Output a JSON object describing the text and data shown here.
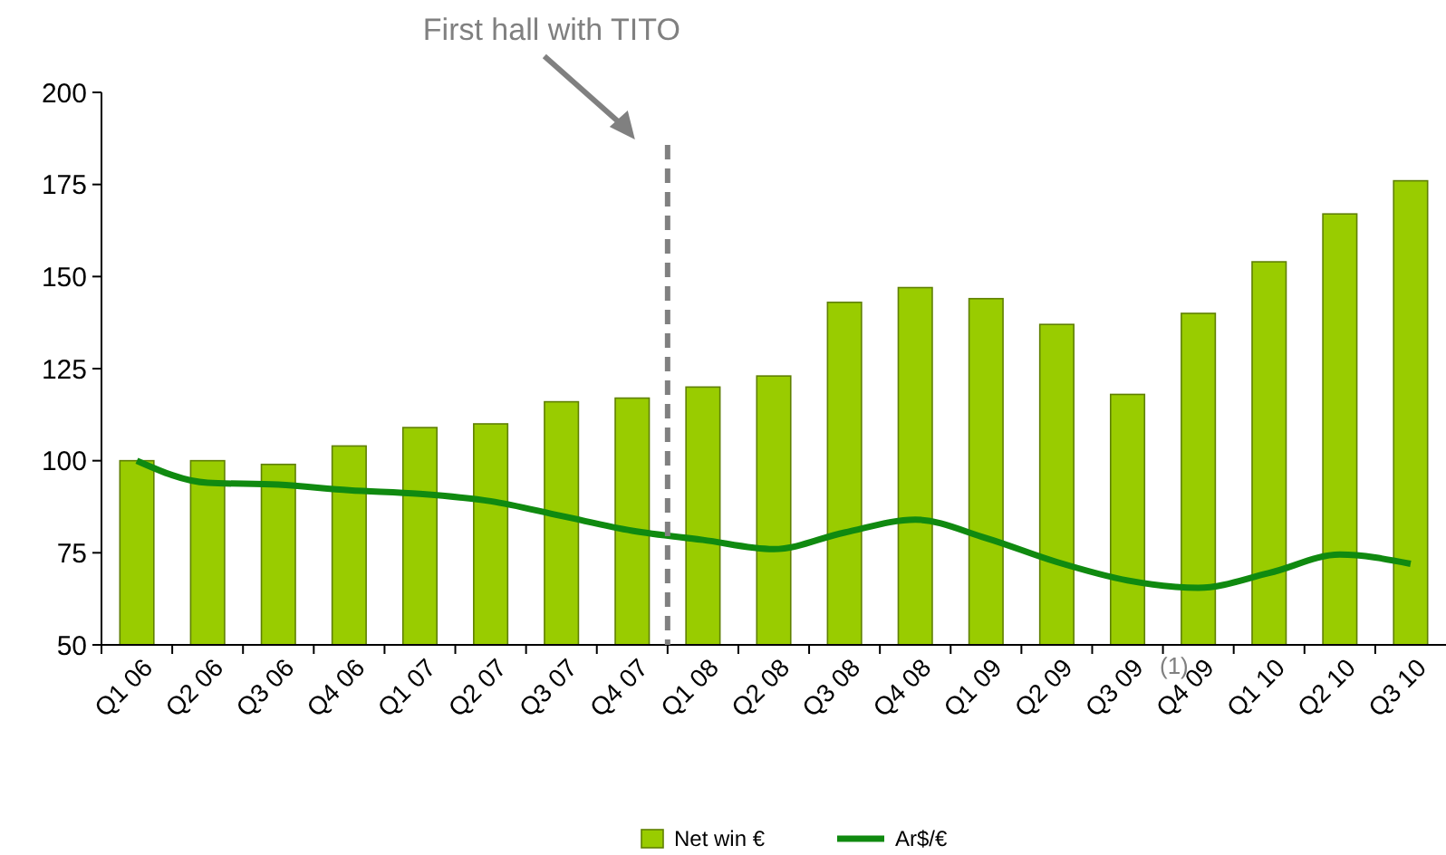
{
  "chart_data": {
    "type": "bar",
    "categories": [
      "Q1 06",
      "Q2 06",
      "Q3 06",
      "Q4 06",
      "Q1 07",
      "Q2 07",
      "Q3 07",
      "Q4 07",
      "Q1 08",
      "Q2 08",
      "Q3 08",
      "Q4 08",
      "Q1 09",
      "Q2 09",
      "Q3 09",
      "Q4 09",
      "Q1 10",
      "Q2 10",
      "Q3 10"
    ],
    "series": [
      {
        "name": "Net win €",
        "color": "#99cc00",
        "values": [
          100,
          100,
          99,
          104,
          109,
          110,
          116,
          117,
          120,
          123,
          143,
          147,
          144,
          137,
          118,
          140,
          154,
          167,
          176
        ]
      },
      {
        "name": "Ar$/€",
        "type": "line",
        "color": "#108a10",
        "values": [
          100,
          94,
          93.5,
          92,
          91,
          89,
          85,
          81,
          78.5,
          76,
          80.5,
          84,
          79,
          72.5,
          67.5,
          65.5,
          69.5,
          74.5,
          72
        ]
      }
    ],
    "ylim": [
      50,
      200
    ],
    "yticks": [
      50,
      75,
      100,
      125,
      150,
      175,
      200
    ],
    "grid": false,
    "legend": "bottom",
    "marker": "none",
    "line_style": "solid",
    "ref_lines": [
      {
        "axis": "x",
        "value": "Q1 08",
        "color": "#808080",
        "line_style": "dashed"
      }
    ],
    "annotations": [
      "First hall with TITO",
      "(1)"
    ]
  }
}
